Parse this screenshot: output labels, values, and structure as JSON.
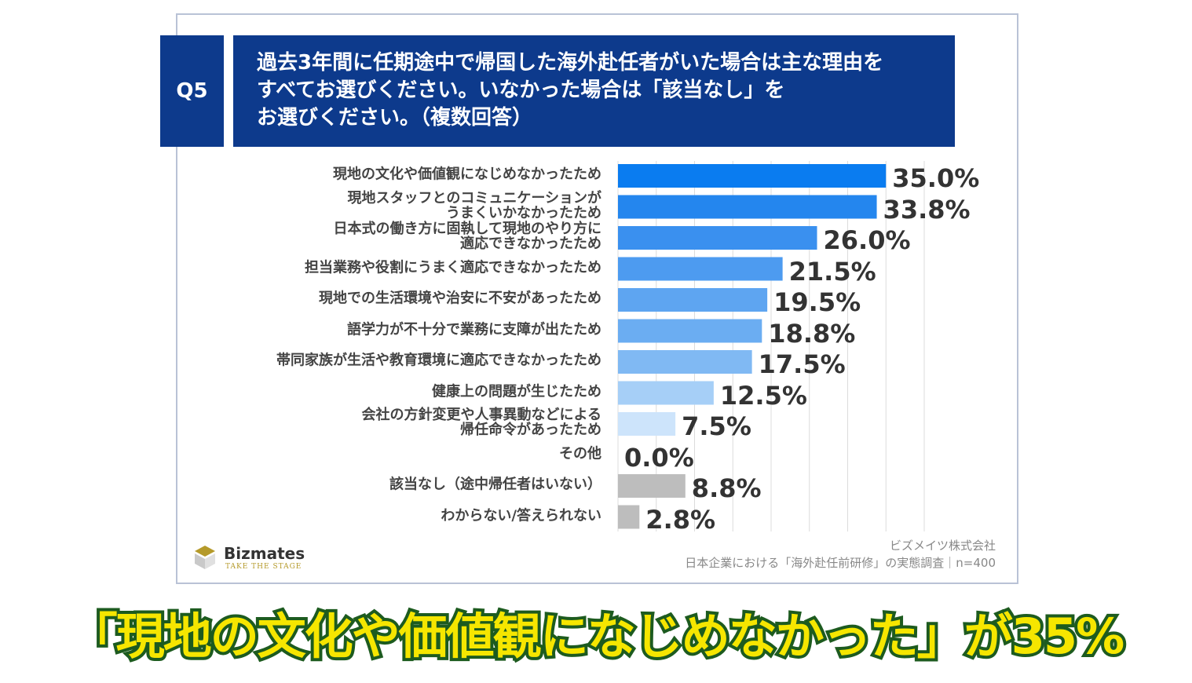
{
  "chart_data": {
    "type": "barh",
    "question_number": "Q5",
    "title": "過去3年間に任期途中で帰国した海外赴任者がいた場合は主な理由を\nすべてお選びください。いなかった場合は「該当なし」を\nお選びください。（複数回答）",
    "categories": [
      "現地の文化や価値観になじめなかったため",
      "現地スタッフとのコミュニケーションが\nうまくいかなかったため",
      "日本式の働き方に固執して現地のやり方に\n適応できなかったため",
      "担当業務や役割にうまく適応できなかったため",
      "現地での生活環境や治安に不安があったため",
      "語学力が不十分で業務に支障が出たため",
      "帯同家族が生活や教育環境に適応できなかったため",
      "健康上の問題が生じたため",
      "会社の方針変更や人事異動などによる\n帰任命令があったため",
      "その他",
      "該当なし（途中帰任者はいない）",
      "わからない/答えられない"
    ],
    "values": [
      35.0,
      33.8,
      26.0,
      21.5,
      19.5,
      18.8,
      17.5,
      12.5,
      7.5,
      0.0,
      8.8,
      2.8
    ],
    "value_labels": [
      "35.0%",
      "33.8%",
      "26.0%",
      "21.5%",
      "19.5%",
      "18.8%",
      "17.5%",
      "12.5%",
      "7.5%",
      "0.0%",
      "8.8%",
      "2.8%"
    ],
    "colors": [
      "#0a7cf0",
      "#2486ee",
      "#3a90ef",
      "#4d9bf0",
      "#5ea5f1",
      "#6badf2",
      "#80b9f3",
      "#a6cff7",
      "#cde4fb",
      "#ddeefc",
      "#bdbdbd",
      "#bdbdbd"
    ],
    "xlim": [
      0,
      40
    ],
    "xticks": [
      0,
      5,
      10,
      15,
      20,
      25,
      30,
      35,
      40
    ],
    "grid": true,
    "source": [
      "ビズメイツ株式会社",
      "日本企業における「海外赴任前研修」の実態調査｜n=400"
    ]
  },
  "logo": {
    "name": "Bizmates",
    "tagline": "TAKE THE STAGE"
  },
  "caption": "「現地の文化や価値観になじめなかった」が35%"
}
